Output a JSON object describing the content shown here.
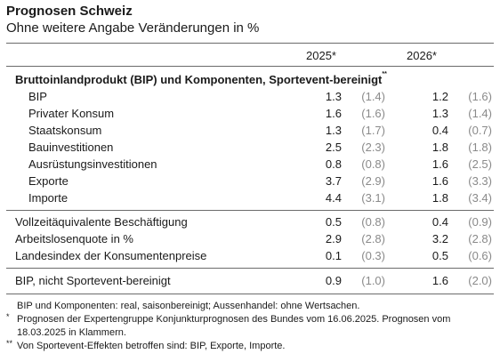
{
  "title": "Prognosen Schweiz",
  "subtitle": "Ohne weitere Angabe Veränderungen in %",
  "columns": {
    "y2025": "2025*",
    "y2026": "2026*"
  },
  "section_title": "Bruttoinlandprodukt (BIP) und Komponenten, Sportevent-bereinigt",
  "section_mark": "**",
  "rows": [
    {
      "label": "BIP",
      "v2025": "1.3",
      "p2025": "(1.4)",
      "v2026": "1.2",
      "p2026": "(1.6)"
    },
    {
      "label": "Privater Konsum",
      "v2025": "1.6",
      "p2025": "(1.6)",
      "v2026": "1.3",
      "p2026": "(1.4)"
    },
    {
      "label": "Staatskonsum",
      "v2025": "1.3",
      "p2025": "(1.7)",
      "v2026": "0.4",
      "p2026": "(0.7)"
    },
    {
      "label": "Bauinvestitionen",
      "v2025": "2.5",
      "p2025": "(2.3)",
      "v2026": "1.8",
      "p2026": "(1.8)"
    },
    {
      "label": "Ausrüstungsinvestitionen",
      "v2025": "0.8",
      "p2025": "(0.8)",
      "v2026": "1.6",
      "p2026": "(2.5)"
    },
    {
      "label": "Exporte",
      "v2025": "3.7",
      "p2025": "(2.9)",
      "v2026": "1.6",
      "p2026": "(3.3)"
    },
    {
      "label": "Importe",
      "v2025": "4.4",
      "p2025": "(3.1)",
      "v2026": "1.8",
      "p2026": "(3.4)"
    }
  ],
  "rows2": [
    {
      "label": "Vollzeitäquivalente Beschäftigung",
      "v2025": "0.5",
      "p2025": "(0.8)",
      "v2026": "0.4",
      "p2026": "(0.9)"
    },
    {
      "label": "Arbeitslosenquote in %",
      "v2025": "2.9",
      "p2025": "(2.8)",
      "v2026": "3.2",
      "p2026": "(2.8)"
    },
    {
      "label": "Landesindex der Konsumentenpreise",
      "v2025": "0.1",
      "p2025": "(0.3)",
      "v2026": "0.5",
      "p2026": "(0.6)"
    }
  ],
  "rows3": [
    {
      "label": "BIP, nicht Sportevent-bereinigt",
      "v2025": "0.9",
      "p2025": "(1.0)",
      "v2026": "1.6",
      "p2026": "(2.0)"
    }
  ],
  "notes": {
    "n1": "BIP und Komponenten: real, saisonbereinigt; Aussenhandel: ohne Wertsachen.",
    "n2_mark": "*",
    "n2_line1": "Prognosen der Expertengruppe Konjunkturprognosen des Bundes vom 16.06.2025. Prognosen vom",
    "n2_line2": "18.03.2025 in Klammern.",
    "n3_mark": "**",
    "n3": "Von Sportevent-Effekten betroffen sind: BIP, Exporte, Importe."
  }
}
